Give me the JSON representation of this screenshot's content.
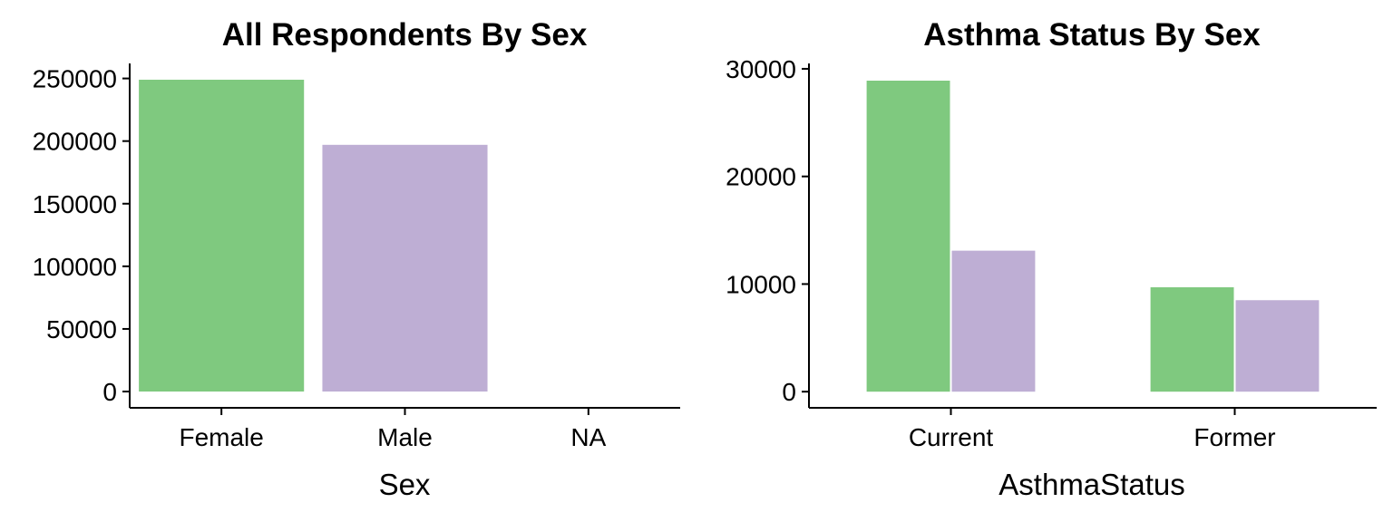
{
  "chart_data": [
    {
      "type": "bar",
      "title": "All Respondents By Sex",
      "xlabel": "Sex",
      "ylabel": "",
      "categories": [
        "Female",
        "Male",
        "NA"
      ],
      "values": [
        249000,
        197000,
        0
      ],
      "colors": [
        "#7fc97f",
        "#beaed4",
        "#fdc086"
      ],
      "ylim": [
        -13000,
        262000
      ],
      "yticks": [
        0,
        50000,
        100000,
        150000,
        200000,
        250000
      ],
      "ytick_labels": [
        "0",
        "50000",
        "100000",
        "150000",
        "200000",
        "250000"
      ],
      "legend": "none",
      "grid": false
    },
    {
      "type": "bar",
      "title": "Asthma Status By Sex",
      "xlabel": "AsthmaStatus",
      "ylabel": "",
      "categories": [
        "Current",
        "Former"
      ],
      "series": [
        {
          "values": [
            28900,
            9700
          ],
          "color": "#7fc97f"
        },
        {
          "values": [
            13100,
            8500
          ],
          "color": "#beaed4"
        }
      ],
      "ylim": [
        -1500,
        30500
      ],
      "yticks": [
        0,
        10000,
        20000,
        30000
      ],
      "ytick_labels": [
        "0",
        "10000",
        "20000",
        "30000"
      ],
      "legend": "none",
      "grid": false
    }
  ]
}
